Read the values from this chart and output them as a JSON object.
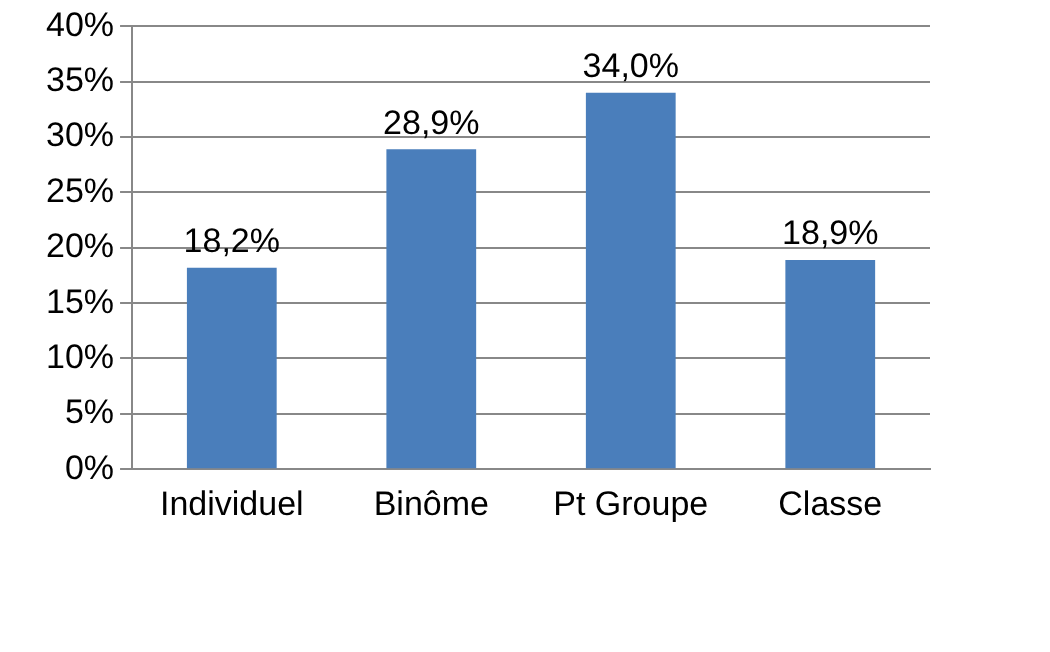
{
  "chart_data": {
    "type": "bar",
    "categories": [
      "Individuel",
      "Binôme",
      "Pt Groupe",
      "Classe"
    ],
    "values": [
      18.2,
      28.9,
      34.0,
      18.9
    ],
    "value_labels": [
      "18,2%",
      "28,9%",
      "34,0%",
      "18,9%"
    ],
    "color": "#4a7ebb",
    "ylim": [
      0,
      40
    ],
    "yticks": [
      {
        "value": 0,
        "label": "0%"
      },
      {
        "value": 5,
        "label": "5%"
      },
      {
        "value": 10,
        "label": "10%"
      },
      {
        "value": 15,
        "label": "15%"
      },
      {
        "value": 20,
        "label": "20%"
      },
      {
        "value": 25,
        "label": "25%"
      },
      {
        "value": 30,
        "label": "30%"
      },
      {
        "value": 35,
        "label": "35%"
      },
      {
        "value": 40,
        "label": "40%"
      }
    ],
    "grid": "y",
    "legend": false
  }
}
